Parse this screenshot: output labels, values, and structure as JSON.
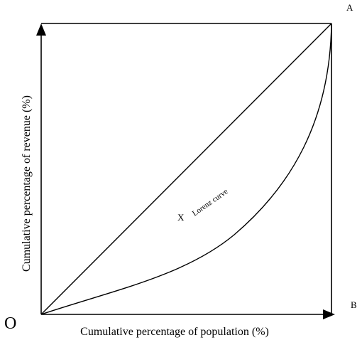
{
  "diagram": {
    "origin_label": "O",
    "corner_top_right_label": "A",
    "corner_bottom_right_label": "B",
    "x_axis_label": "Cumulative percentage of population (%)",
    "y_axis_label": "Cumulative percentage of revenue (%)",
    "curve_label": "Lorenz curve",
    "area_marker": "X",
    "colors": {
      "line": "#000000",
      "background": "#ffffff"
    }
  }
}
